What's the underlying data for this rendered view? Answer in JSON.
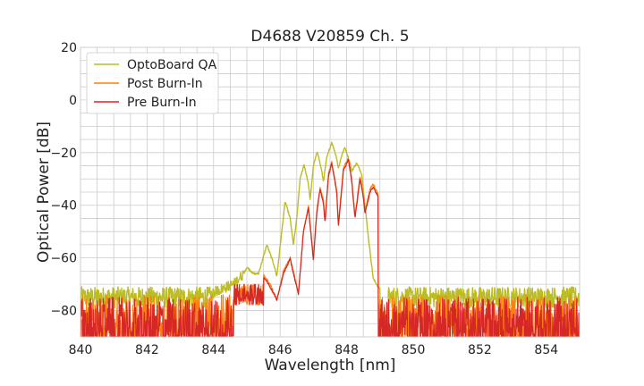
{
  "chart_data": {
    "type": "line",
    "title": "D4688 V20859 Ch. 5",
    "xlabel": "Wavelength [nm]",
    "ylabel": "Optical Power [dB]",
    "xlim": [
      840,
      855
    ],
    "ylim": [
      -90,
      20
    ],
    "xticks": [
      "840",
      "842",
      "844",
      "846",
      "848",
      "850",
      "852",
      "854"
    ],
    "yticks": [
      "20",
      "0",
      "−20",
      "−40",
      "−60",
      "−80"
    ],
    "grid": true,
    "legend_position": "top-left",
    "noise_floor_db": -90,
    "series": [
      {
        "name": "OptoBoard QA",
        "color": "#bcbd22",
        "noise_band": [
          -79,
          -71
        ],
        "points": [
          [
            840.0,
            -75
          ],
          [
            844.0,
            -73
          ],
          [
            844.6,
            -70
          ],
          [
            844.9,
            -66
          ],
          [
            845.0,
            -63.5
          ],
          [
            845.2,
            -66
          ],
          [
            845.35,
            -66
          ],
          [
            845.6,
            -55
          ],
          [
            845.8,
            -62
          ],
          [
            845.9,
            -67
          ],
          [
            846.15,
            -38.5
          ],
          [
            846.3,
            -45
          ],
          [
            846.4,
            -55
          ],
          [
            846.5,
            -45
          ],
          [
            846.6,
            -30
          ],
          [
            846.72,
            -24.5
          ],
          [
            846.85,
            -32
          ],
          [
            846.9,
            -38
          ],
          [
            847.0,
            -25
          ],
          [
            847.12,
            -19.5
          ],
          [
            847.25,
            -27
          ],
          [
            847.3,
            -31
          ],
          [
            847.4,
            -22
          ],
          [
            847.55,
            -16
          ],
          [
            847.7,
            -22
          ],
          [
            847.75,
            -26
          ],
          [
            847.85,
            -21
          ],
          [
            847.95,
            -18
          ],
          [
            848.1,
            -24
          ],
          [
            848.15,
            -27
          ],
          [
            848.3,
            -24
          ],
          [
            848.45,
            -28
          ],
          [
            848.65,
            -52
          ],
          [
            848.8,
            -68
          ],
          [
            849.0,
            -72
          ],
          [
            849.1,
            -74
          ],
          [
            849.2,
            -90
          ]
        ]
      },
      {
        "name": "Post Burn-In",
        "color": "#ff7f0e",
        "noise_band": [
          -90,
          -74
        ],
        "points": [
          [
            840.0,
            -85
          ],
          [
            845.0,
            -80
          ],
          [
            845.3,
            -70
          ],
          [
            845.5,
            -66.5
          ],
          [
            845.7,
            -70
          ],
          [
            845.9,
            -76
          ],
          [
            846.1,
            -65
          ],
          [
            846.3,
            -60
          ],
          [
            846.55,
            -73
          ],
          [
            846.7,
            -50
          ],
          [
            846.85,
            -40
          ],
          [
            847.0,
            -60
          ],
          [
            847.1,
            -42
          ],
          [
            847.2,
            -33.5
          ],
          [
            847.3,
            -38
          ],
          [
            847.35,
            -46
          ],
          [
            847.45,
            -28
          ],
          [
            847.55,
            -23.5
          ],
          [
            847.7,
            -34
          ],
          [
            847.75,
            -47
          ],
          [
            847.9,
            -26
          ],
          [
            848.05,
            -22
          ],
          [
            848.15,
            -30
          ],
          [
            848.25,
            -44
          ],
          [
            848.4,
            -29
          ],
          [
            848.5,
            -36
          ],
          [
            848.55,
            -42
          ],
          [
            848.7,
            -34
          ],
          [
            848.8,
            -32
          ],
          [
            848.95,
            -36
          ],
          [
            849.2,
            -60
          ],
          [
            849.4,
            -74
          ]
        ]
      },
      {
        "name": "Pre Burn-In",
        "color": "#d62728",
        "noise_band": [
          -90,
          -75
        ],
        "points": [
          [
            840.0,
            -86
          ],
          [
            845.0,
            -80
          ],
          [
            845.3,
            -70
          ],
          [
            845.5,
            -67
          ],
          [
            845.7,
            -71
          ],
          [
            845.9,
            -76
          ],
          [
            846.1,
            -66
          ],
          [
            846.3,
            -60.5
          ],
          [
            846.55,
            -74
          ],
          [
            846.7,
            -50
          ],
          [
            846.85,
            -41
          ],
          [
            847.0,
            -61
          ],
          [
            847.1,
            -43
          ],
          [
            847.2,
            -34
          ],
          [
            847.3,
            -39
          ],
          [
            847.35,
            -47
          ],
          [
            847.45,
            -29
          ],
          [
            847.55,
            -24
          ],
          [
            847.7,
            -35
          ],
          [
            847.75,
            -48
          ],
          [
            847.9,
            -27
          ],
          [
            848.05,
            -22.5
          ],
          [
            848.15,
            -31
          ],
          [
            848.25,
            -45
          ],
          [
            848.4,
            -30
          ],
          [
            848.5,
            -37
          ],
          [
            848.55,
            -43
          ],
          [
            848.7,
            -35
          ],
          [
            848.8,
            -33
          ],
          [
            848.95,
            -37
          ],
          [
            849.2,
            -61
          ],
          [
            849.4,
            -75
          ]
        ]
      }
    ]
  }
}
